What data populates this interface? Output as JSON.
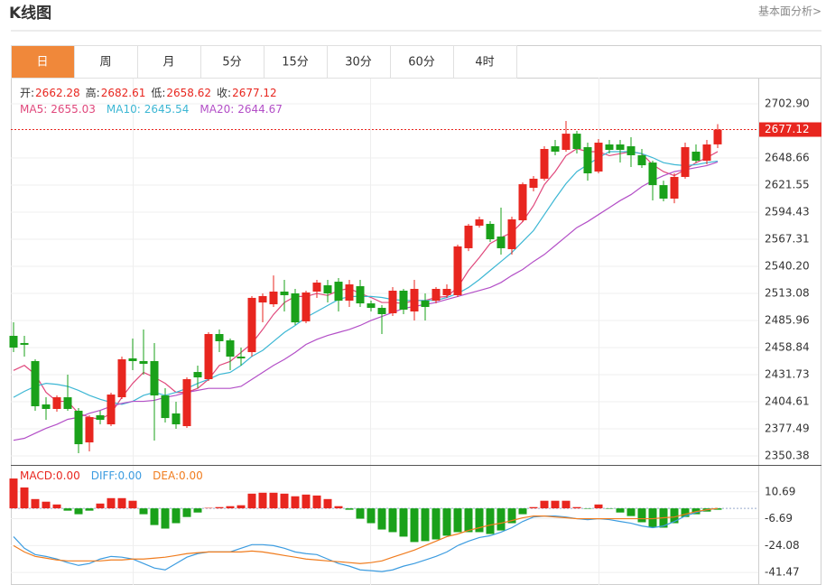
{
  "header": {
    "title": "K线图",
    "link": "基本面分析>"
  },
  "tabs": {
    "items": [
      "日",
      "周",
      "月",
      "5分",
      "15分",
      "30分",
      "60分",
      "4时"
    ],
    "active": 0,
    "active_color": "#f0883a"
  },
  "chart_data": [
    {
      "type": "candlestick",
      "up_color": "#e8261f",
      "down_color": "#1aa11a",
      "grid": true,
      "ylim": [
        2341.34,
        2729.11
      ],
      "yticks": [
        {
          "value": 2702.9,
          "label": "2702.90"
        },
        2648.66,
        2621.55,
        2594.43,
        2567.31,
        {
          "value": 2540.2,
          "label": "2540.20"
        },
        2513.08,
        2485.96,
        2458.84,
        2431.73,
        2404.61,
        2377.49,
        2350.38
      ],
      "last_price": 2677.12,
      "info": [
        {
          "label": "开:",
          "value": 2662.28
        },
        {
          "label": "高:",
          "value": 2682.61
        },
        {
          "label": "低:",
          "value": 2658.62
        },
        {
          "label": "收:",
          "value": 2677.12
        }
      ],
      "open": [
        2470.6,
        2463.4,
        2445.3,
        2401.9,
        2397.4,
        2409.1,
        2395.6,
        2363.9,
        2391.1,
        2382.0,
        2409.1,
        2448.0,
        2445.3,
        2445.3,
        2410.9,
        2392.9,
        2380.2,
        2434.4,
        2427.2,
        2472.4,
        2466.1,
        2449.8,
        2454.3,
        2504.0,
        2502.2,
        2514.9,
        2513.1,
        2485.1,
        2514.9,
        2521.2,
        2524.8,
        2505.8,
        2520.3,
        2503.1,
        2498.6,
        2493.2,
        2515.8,
        2495.0,
        2505.8,
        2505.8,
        2511.3,
        2511.3,
        2558.3,
        2580.9,
        2582.7,
        2570.0,
        2557.4,
        2586.3,
        2618.8,
        2627.9,
        2660.4,
        2656.8,
        2673.0,
        2659.5,
        2635.1,
        2662.2,
        2662.2,
        2660.4,
        2651.4,
        2644.1,
        2621.5,
        2608.0,
        2629.7,
        2655.0,
        2645.9,
        2662.28
      ],
      "high": [
        2484.1,
        2470.6,
        2447.1,
        2409.1,
        2410.9,
        2431.7,
        2398.3,
        2391.1,
        2395.6,
        2413.7,
        2449.8,
        2467.9,
        2476.9,
        2463.4,
        2418.2,
        2404.6,
        2429.0,
        2440.8,
        2474.2,
        2476.9,
        2467.9,
        2458.8,
        2510.4,
        2513.1,
        2531.1,
        2526.6,
        2517.6,
        2515.8,
        2526.6,
        2526.6,
        2528.4,
        2526.6,
        2526.6,
        2505.8,
        2501.3,
        2519.4,
        2517.6,
        2526.6,
        2513.1,
        2519.4,
        2522.1,
        2561.9,
        2582.7,
        2589.9,
        2585.4,
        2598.9,
        2589.9,
        2624.2,
        2630.6,
        2660.4,
        2666.7,
        2685.7,
        2675.8,
        2664.0,
        2667.6,
        2666.7,
        2666.7,
        2669.4,
        2657.7,
        2645.9,
        2626.0,
        2633.3,
        2664.0,
        2662.2,
        2666.7,
        2682.61
      ],
      "low": [
        2454.3,
        2449.8,
        2395.6,
        2386.5,
        2394.7,
        2395.6,
        2353.1,
        2354.9,
        2382.0,
        2380.2,
        2407.3,
        2436.2,
        2431.7,
        2365.8,
        2383.8,
        2377.5,
        2378.4,
        2418.2,
        2425.4,
        2454.3,
        2436.2,
        2440.8,
        2449.8,
        2484.1,
        2499.5,
        2495.0,
        2481.4,
        2483.2,
        2508.6,
        2504.0,
        2495.0,
        2499.5,
        2499.5,
        2495.0,
        2472.4,
        2490.5,
        2492.3,
        2486.0,
        2486.0,
        2503.1,
        2508.6,
        2509.5,
        2555.5,
        2579.0,
        2564.6,
        2551.9,
        2551.9,
        2584.5,
        2615.2,
        2626.0,
        2651.4,
        2655.0,
        2653.2,
        2626.0,
        2633.3,
        2653.2,
        2644.1,
        2639.6,
        2638.7,
        2606.2,
        2605.3,
        2603.4,
        2627.9,
        2644.1,
        2642.3,
        2658.62
      ],
      "close": [
        2458.8,
        2461.6,
        2400.1,
        2397.4,
        2409.1,
        2397.4,
        2362.1,
        2389.2,
        2386.5,
        2411.8,
        2447.1,
        2445.3,
        2442.6,
        2410.9,
        2388.3,
        2382.0,
        2427.2,
        2429.0,
        2472.4,
        2465.2,
        2449.8,
        2448.0,
        2508.6,
        2510.4,
        2514.9,
        2511.3,
        2484.1,
        2514.0,
        2523.9,
        2513.1,
        2505.8,
        2522.1,
        2503.1,
        2498.6,
        2492.3,
        2515.8,
        2496.8,
        2517.6,
        2499.5,
        2517.6,
        2517.6,
        2560.1,
        2580.9,
        2587.2,
        2567.3,
        2558.3,
        2587.2,
        2622.4,
        2627.9,
        2657.7,
        2655.0,
        2673.0,
        2657.7,
        2633.3,
        2664.0,
        2656.8,
        2656.8,
        2651.4,
        2641.4,
        2621.5,
        2608.0,
        2629.7,
        2659.5,
        2645.9,
        2662.2,
        2677.12
      ],
      "series": [
        {
          "name": "MA5:",
          "color": "#e0487c",
          "latest": 2655.03,
          "values": [
            2436,
            2441,
            2432,
            2414,
            2405,
            2405,
            2393,
            2389,
            2387,
            2393,
            2409,
            2423,
            2434,
            2429,
            2423,
            2414,
            2414,
            2418,
            2427,
            2441,
            2445,
            2454,
            2463,
            2477,
            2492,
            2504,
            2510,
            2510,
            2513,
            2511,
            2516,
            2518,
            2513,
            2509,
            2504,
            2504,
            2503,
            2506,
            2506,
            2509,
            2510,
            2519,
            2536,
            2549,
            2563,
            2569,
            2574,
            2585,
            2601,
            2622,
            2635,
            2651,
            2658,
            2655,
            2655,
            2651,
            2653,
            2655,
            2653,
            2642,
            2635,
            2631,
            2637,
            2644,
            2649,
            2655.03
          ]
        },
        {
          "name": "MA10:",
          "color": "#3db7d4",
          "latest": 2645.54,
          "values": [
            2409,
            2415,
            2420,
            2423,
            2422,
            2420,
            2416,
            2411,
            2407,
            2404,
            2402,
            2405,
            2411,
            2414,
            2411,
            2414,
            2418,
            2423,
            2427,
            2432,
            2434,
            2441,
            2450,
            2456,
            2465,
            2474,
            2481,
            2489,
            2495,
            2501,
            2507,
            2510,
            2510,
            2510,
            2509,
            2507,
            2506,
            2506,
            2506,
            2506,
            2509,
            2513,
            2519,
            2527,
            2536,
            2545,
            2554,
            2565,
            2576,
            2592,
            2608,
            2623,
            2635,
            2642,
            2649,
            2655,
            2655,
            2655,
            2653,
            2649,
            2644,
            2642,
            2641,
            2642,
            2644,
            2645.54
          ]
        },
        {
          "name": "MA20:",
          "color": "#b34fc7",
          "latest": 2644.67,
          "values": [
            2366,
            2368,
            2373,
            2378,
            2382,
            2387,
            2389,
            2393,
            2396,
            2400,
            2403,
            2405,
            2405,
            2406,
            2409,
            2411,
            2414,
            2416,
            2418,
            2418,
            2418,
            2420,
            2427,
            2434,
            2441,
            2447,
            2454,
            2462,
            2467,
            2471,
            2474,
            2477,
            2481,
            2486,
            2490,
            2494,
            2498,
            2500,
            2502,
            2504,
            2507,
            2510,
            2513,
            2516,
            2519,
            2524,
            2531,
            2537,
            2545,
            2552,
            2561,
            2570,
            2579,
            2585,
            2592,
            2599,
            2606,
            2612,
            2620,
            2626,
            2631,
            2635,
            2637,
            2639,
            2641,
            2644.67
          ]
        }
      ]
    },
    {
      "type": "macd",
      "name": "MACD:",
      "latest_label": "0.00",
      "up_color": "#e8261f",
      "down_color": "#1aa11a",
      "grid": true,
      "ylim": [
        -49.0,
        28.08
      ],
      "yticks": [
        10.69,
        -6.69,
        -24.08,
        -41.47
      ],
      "values": [
        19.3,
        13.5,
        6.0,
        4.3,
        2.5,
        -1.5,
        -3.8,
        -1.5,
        3.1,
        6.6,
        6.6,
        4.9,
        -3.8,
        -10.8,
        -13.1,
        -9.6,
        -5.6,
        -2.7,
        0.3,
        0.8,
        1.4,
        2.0,
        9.5,
        10.1,
        10.1,
        9.5,
        7.8,
        8.9,
        8.3,
        6.0,
        1.4,
        -0.9,
        -6.7,
        -9.6,
        -13.7,
        -15.4,
        -18.3,
        -21.8,
        -21.2,
        -20.1,
        -17.7,
        -15.4,
        -15.4,
        -15.4,
        -16.6,
        -14.3,
        -9.6,
        -3.8,
        0.8,
        4.9,
        4.9,
        4.9,
        0.8,
        -0.3,
        2.5,
        -0.3,
        -2.7,
        -5.0,
        -9.0,
        -12.5,
        -12.5,
        -9.6,
        -5.6,
        -3.8,
        -2.1,
        -0.9
      ],
      "series": [
        {
          "name": "DIFF:",
          "color": "#3c9ce0",
          "latest_label": "0.00",
          "values": [
            -18.3,
            -25.8,
            -29.9,
            -31.1,
            -32.8,
            -35.1,
            -36.9,
            -35.7,
            -32.8,
            -31.1,
            -31.6,
            -32.8,
            -35.7,
            -38.6,
            -39.8,
            -35.7,
            -31.6,
            -29.3,
            -28.2,
            -28.2,
            -28.2,
            -25.8,
            -23.5,
            -23.5,
            -24.1,
            -25.8,
            -28.2,
            -29.3,
            -29.9,
            -32.8,
            -35.7,
            -37.4,
            -39.8,
            -40.3,
            -40.9,
            -39.8,
            -37.4,
            -35.7,
            -33.4,
            -31.1,
            -28.2,
            -24.1,
            -21.2,
            -18.9,
            -17.7,
            -15.4,
            -12.5,
            -8.5,
            -5.6,
            -5.0,
            -5.0,
            -5.6,
            -6.7,
            -7.3,
            -6.7,
            -7.3,
            -8.5,
            -9.6,
            -11.4,
            -12.5,
            -11.4,
            -8.5,
            -5.0,
            -2.7,
            -0.9,
            0
          ]
        },
        {
          "name": "DEA:",
          "color": "#f07c1e",
          "latest_label": "0.00",
          "values": [
            -24.1,
            -28.2,
            -31.1,
            -32.2,
            -33.4,
            -34.0,
            -34.0,
            -34.0,
            -34.0,
            -33.4,
            -33.4,
            -32.8,
            -32.8,
            -32.2,
            -31.6,
            -30.5,
            -29.3,
            -28.7,
            -28.2,
            -28.2,
            -28.2,
            -28.2,
            -27.6,
            -28.2,
            -29.3,
            -30.5,
            -31.6,
            -32.8,
            -33.4,
            -34.0,
            -34.5,
            -35.1,
            -35.7,
            -35.1,
            -34.0,
            -31.6,
            -29.3,
            -27.0,
            -24.1,
            -21.2,
            -18.3,
            -16.6,
            -14.3,
            -12.5,
            -10.8,
            -9.6,
            -7.9,
            -6.1,
            -5.0,
            -5.0,
            -5.6,
            -6.1,
            -6.7,
            -6.7,
            -6.7,
            -6.7,
            -6.7,
            -6.7,
            -6.7,
            -6.7,
            -6.1,
            -5.6,
            -3.8,
            -2.1,
            -0.9,
            0
          ]
        }
      ]
    }
  ]
}
